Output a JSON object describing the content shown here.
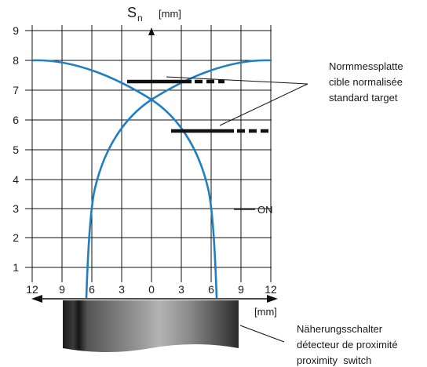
{
  "axis": {
    "y_symbol": "S",
    "y_subscript": "n",
    "y_unit": "[mm]",
    "x_unit": "[mm]"
  },
  "y_ticks": [
    "1",
    "2",
    "3",
    "4",
    "5",
    "6",
    "7",
    "8",
    "9"
  ],
  "x_ticks": [
    "12",
    "9",
    "6",
    "3",
    "0",
    "3",
    "6",
    "9",
    "12"
  ],
  "legend_on": "ON",
  "target_label": [
    "Normmessplatte",
    "cible normalisée",
    "standard target"
  ],
  "switch_label": [
    "Näherungsschalter",
    "détecteur de proximité",
    "proximity  switch"
  ],
  "colors": {
    "curve": "#1f7fc0",
    "grid": "#111111",
    "target": "#111111"
  },
  "chart_data": {
    "type": "line",
    "xlim": [
      -12,
      12
    ],
    "ylim": [
      0,
      9
    ],
    "ylabel": "Sn [mm]",
    "xlabel": "[mm]",
    "series": [
      {
        "x": [
          -12,
          -9,
          -6,
          -3,
          0,
          3,
          6,
          6.5
        ],
        "y": [
          8,
          7.95,
          7.4,
          6.9,
          6.4,
          5.3,
          2.8,
          0
        ]
      },
      {
        "x": [
          -6.5,
          -6,
          -3,
          0,
          3,
          6,
          9,
          12
        ],
        "y": [
          0,
          2.8,
          5.3,
          6.4,
          6.9,
          7.4,
          7.95,
          8
        ]
      }
    ]
  }
}
